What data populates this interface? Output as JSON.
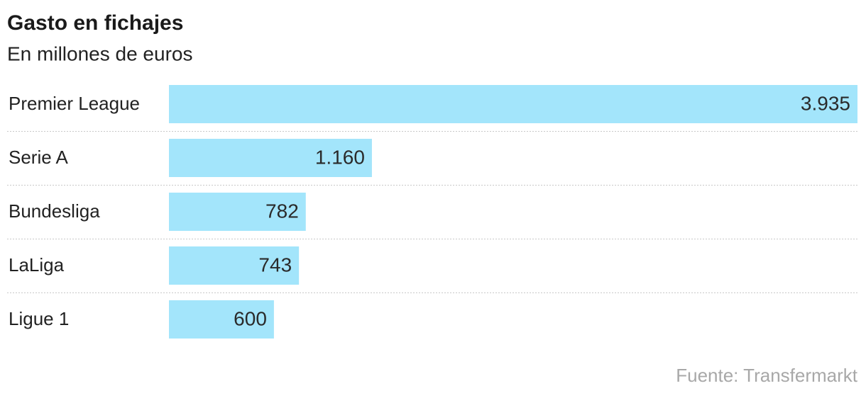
{
  "chart_data": {
    "type": "bar",
    "orientation": "horizontal",
    "title": "Gasto en fichajes",
    "subtitle": "En millones de euros",
    "categories": [
      "Premier League",
      "Serie A",
      "Bundesliga",
      "LaLiga",
      "Ligue 1"
    ],
    "values": [
      3935,
      1160,
      782,
      743,
      600
    ],
    "value_labels": [
      "3.935",
      "1.160",
      "782",
      "743",
      "600"
    ],
    "color": "#a3e5fb",
    "source": "Fuente: Transfermarkt"
  }
}
